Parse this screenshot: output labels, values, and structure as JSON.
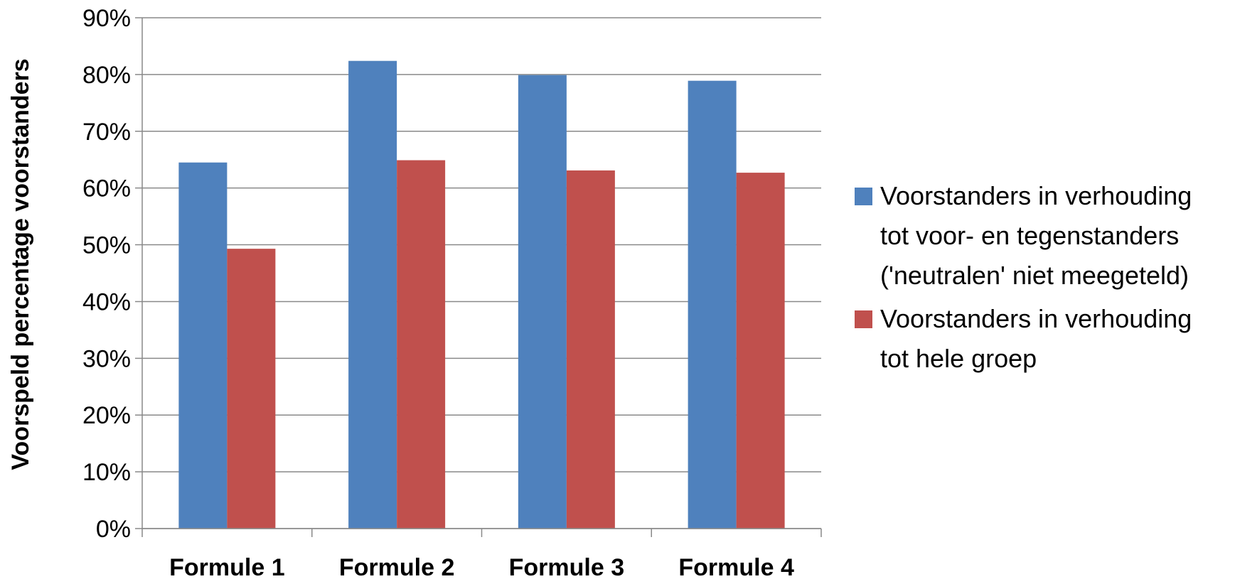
{
  "chart_data": {
    "type": "bar",
    "title": "",
    "xlabel": "",
    "ylabel": "Voorspeld percentage voorstanders",
    "ylim": [
      0,
      90
    ],
    "yticks": [
      "0%",
      "10%",
      "20%",
      "30%",
      "40%",
      "50%",
      "60%",
      "70%",
      "80%",
      "90%"
    ],
    "y_unit": "%",
    "grid": true,
    "legend_position": "right",
    "categories": [
      "Formule 1",
      "Formule 2",
      "Formule 3",
      "Formule 4"
    ],
    "series": [
      {
        "name": "Voorstanders in verhouding tot voor- en tegenstanders ('neutralen' niet meegeteld)",
        "legend_lines": [
          "Voorstanders in verhouding",
          "tot voor- en tegenstanders",
          "('neutralen' niet meegeteld)"
        ],
        "color": "#4F81BD",
        "values": [
          64.5,
          82.4,
          79.9,
          78.9
        ]
      },
      {
        "name": "Voorstanders in verhouding tot hele groep",
        "legend_lines": [
          "Voorstanders in verhouding",
          "tot hele groep"
        ],
        "color": "#C0504D",
        "values": [
          49.3,
          64.9,
          63.1,
          62.7
        ]
      }
    ],
    "gridline_color": "#898989",
    "axis_color": "#898989"
  }
}
